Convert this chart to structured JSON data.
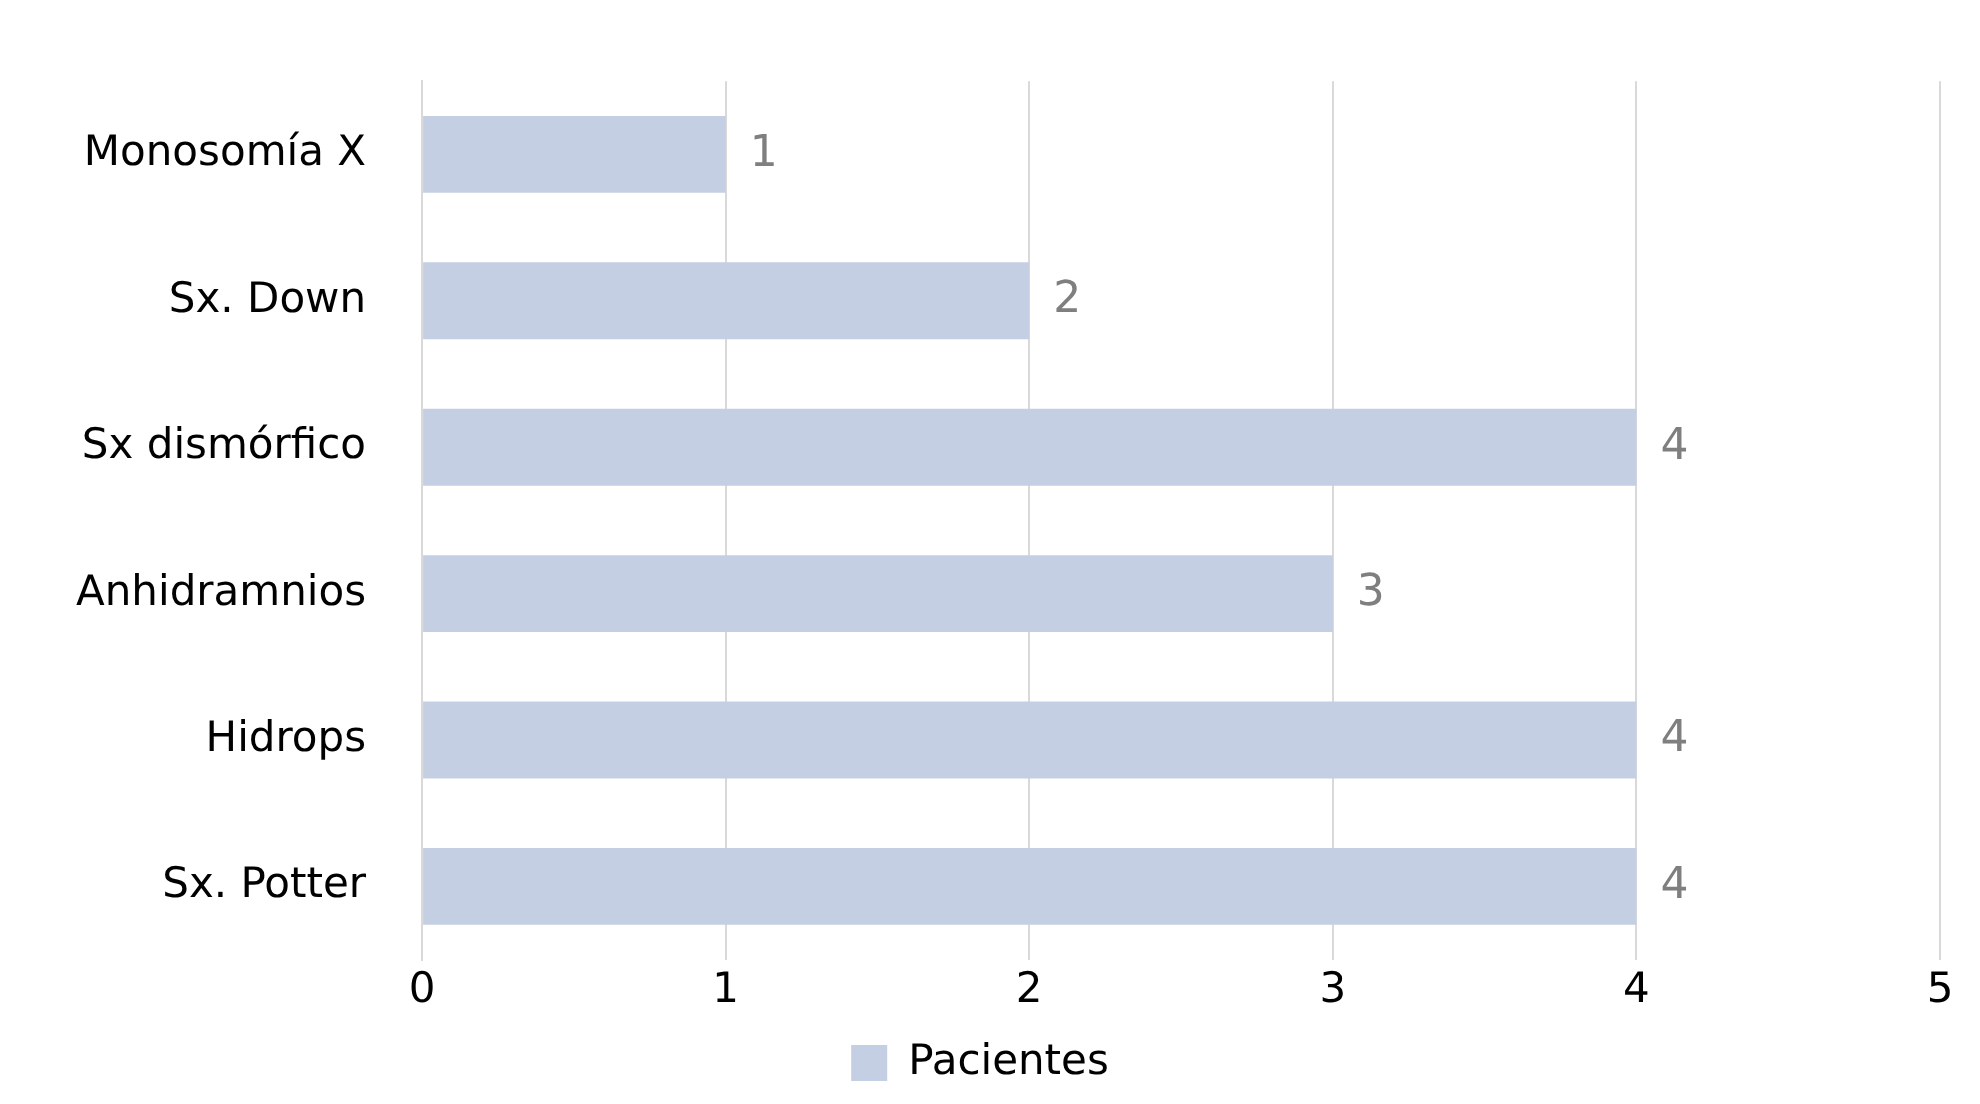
{
  "chart_data": {
    "type": "bar",
    "orientation": "horizontal",
    "categories": [
      "Monosomía X",
      "Sx. Down",
      "Sx dismórfico",
      "Anhidramnios",
      "Hidrops",
      "Sx. Potter"
    ],
    "series": [
      {
        "name": "Pacientes",
        "color": "#c5cfe3",
        "values": [
          1,
          2,
          4,
          3,
          4,
          4
        ]
      }
    ],
    "xlim": [
      0,
      5
    ],
    "xticks": [
      0,
      1,
      2,
      3,
      4,
      5
    ],
    "grid": "x",
    "legend": "bottom",
    "data_labels": true
  }
}
